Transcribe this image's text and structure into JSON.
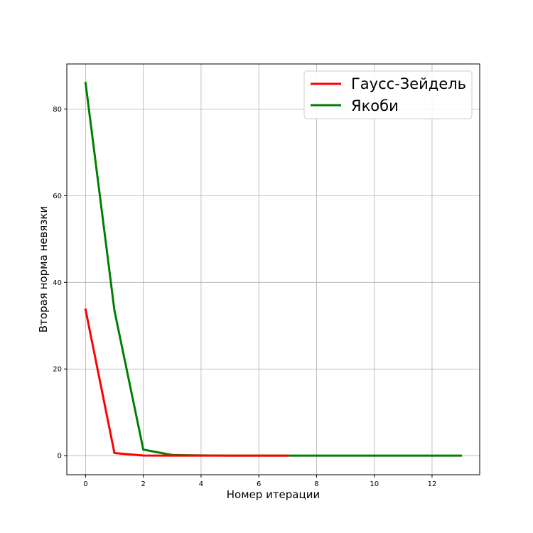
{
  "chart_data": {
    "type": "line",
    "title": "",
    "xlabel": "Номер итерации",
    "ylabel": "Вторая норма невязки",
    "xlim": [
      -0.65,
      13.65
    ],
    "ylim": [
      -4.4,
      90.4
    ],
    "xticks": [
      0,
      2,
      4,
      6,
      8,
      10,
      12
    ],
    "yticks": [
      0,
      20,
      40,
      60,
      80
    ],
    "grid": true,
    "legend_position": "upper right",
    "series": [
      {
        "name": "Гаусс-Зейдель",
        "color": "#ff0000",
        "x": [
          0,
          1,
          2,
          3,
          4,
          5,
          6,
          7
        ],
        "y": [
          33.7,
          0.6,
          0.02,
          0.0,
          0.0,
          0.0,
          0.0,
          0.0
        ]
      },
      {
        "name": "Якоби",
        "color": "#008000",
        "x": [
          0,
          1,
          2,
          3,
          4,
          5,
          6,
          7,
          8,
          9,
          10,
          11,
          12,
          13
        ],
        "y": [
          86.0,
          33.5,
          1.4,
          0.15,
          0.04,
          0.01,
          0.0,
          0.0,
          0.0,
          0.0,
          0.0,
          0.0,
          0.0,
          0.0
        ]
      }
    ]
  }
}
